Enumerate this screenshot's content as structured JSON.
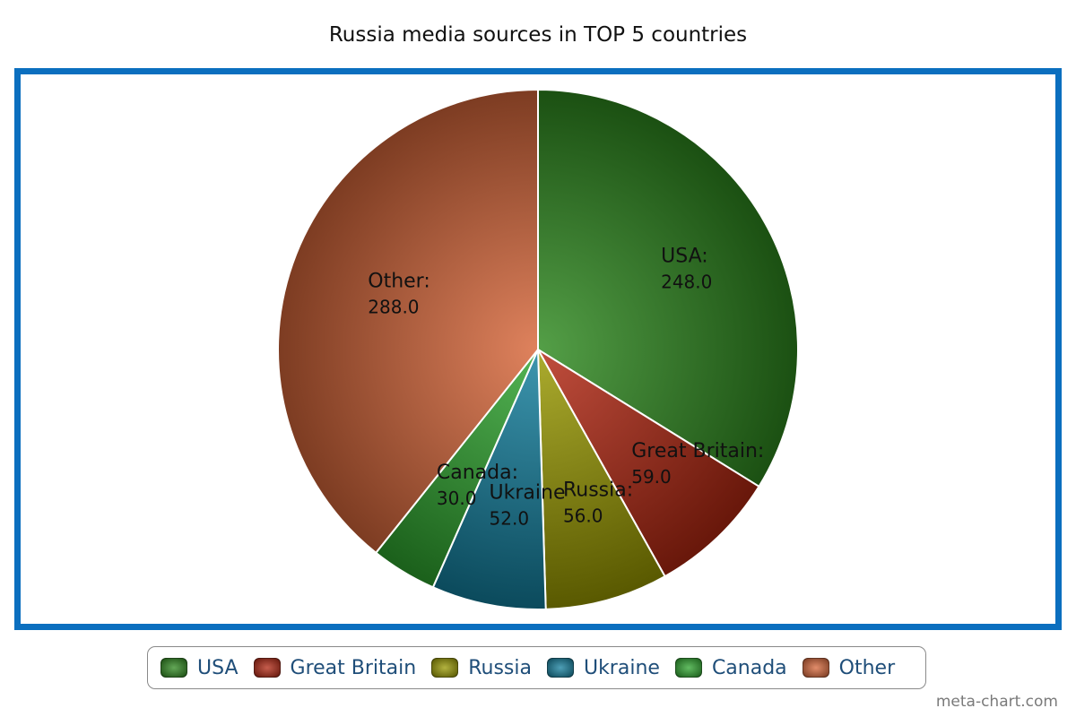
{
  "chart_data": {
    "type": "pie",
    "title": "Russia media sources in TOP 5 countries",
    "categories": [
      "USA",
      "Great Britain",
      "Russia",
      "Ukraine",
      "Canada",
      "Other"
    ],
    "values": [
      248.0,
      59.0,
      56.0,
      52.0,
      30.0,
      288.0
    ],
    "value_labels": [
      "248.0",
      "59.0",
      "56.0",
      "52.0",
      "30.0",
      "288.0"
    ],
    "slice_labels": [
      "USA:",
      "Great Britain:",
      "Russia:",
      "Ukraine",
      "Canada:",
      "Other:"
    ],
    "colors": [
      "#2f8a1f",
      "#b32712",
      "#9a9a00",
      "#137f9e",
      "#2ea52e",
      "#d8673a"
    ],
    "legend": {
      "position": "bottom"
    },
    "frame_color": "#0b6fbf"
  },
  "watermark": "meta-chart.com"
}
